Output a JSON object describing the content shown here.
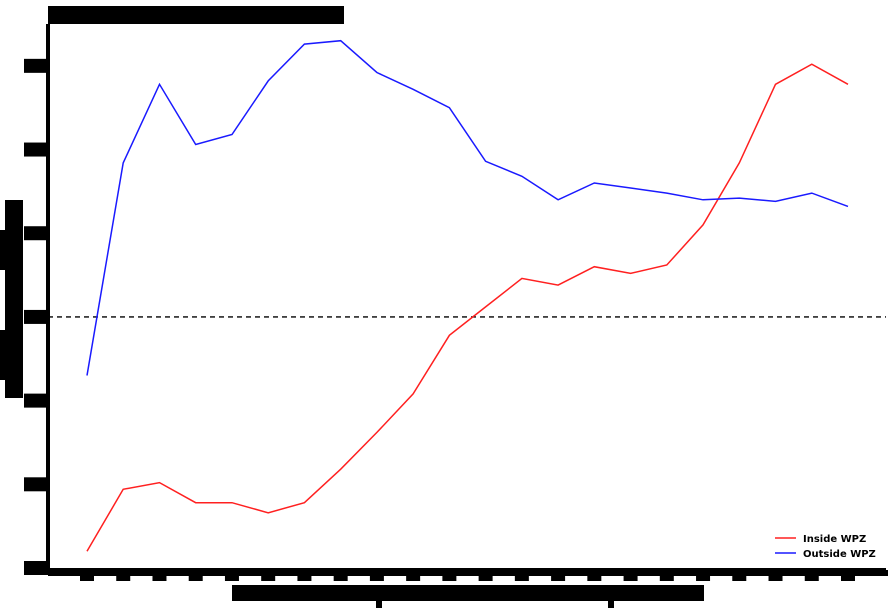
{
  "chart_data": {
    "type": "line",
    "title": "",
    "xlabel": "",
    "ylabel": "",
    "x": [
      1,
      2,
      3,
      4,
      5,
      6,
      7,
      8,
      9,
      10,
      11,
      12,
      13,
      14,
      15,
      16,
      17,
      18,
      19,
      20,
      21,
      22
    ],
    "ylim": [
      -1.5,
      1.75
    ],
    "reference_line": {
      "y": 0,
      "style": "dashed"
    },
    "series": [
      {
        "name": "Inside WPZ",
        "color": "#ff2020",
        "values": [
          -1.4,
          -1.03,
          -0.99,
          -1.11,
          -1.11,
          -1.17,
          -1.11,
          -0.91,
          -0.69,
          -0.46,
          -0.11,
          0.06,
          0.23,
          0.19,
          0.3,
          0.26,
          0.31,
          0.55,
          0.92,
          1.39,
          1.51,
          1.39
        ]
      },
      {
        "name": "Outside WPZ",
        "color": "#1a1aff",
        "values": [
          -0.35,
          0.92,
          1.39,
          1.03,
          1.09,
          1.41,
          1.63,
          1.65,
          1.46,
          1.36,
          1.25,
          0.93,
          0.84,
          0.7,
          0.8,
          0.77,
          0.74,
          0.7,
          0.71,
          0.69,
          0.74,
          0.66
        ]
      }
    ],
    "legend": {
      "position": "bottom-right"
    },
    "grid": false
  }
}
